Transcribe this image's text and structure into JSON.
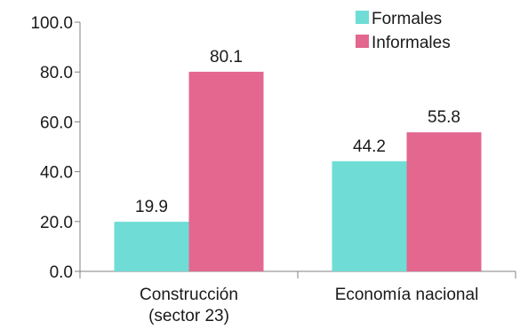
{
  "chart_data": {
    "type": "bar",
    "categories": [
      [
        "Construcción",
        "(sector 23)"
      ],
      [
        "Economía nacional"
      ]
    ],
    "series": [
      {
        "name": "Formales",
        "values": [
          19.9,
          44.2
        ],
        "color": "#6fddd5"
      },
      {
        "name": "Informales",
        "values": [
          80.1,
          55.8
        ],
        "color": "#e3678f"
      }
    ],
    "y_ticks": [
      "0.0",
      "20.0",
      "40.0",
      "60.0",
      "80.0",
      "100.0"
    ],
    "data_labels": [
      [
        "19.9",
        "44.2"
      ],
      [
        "80.1",
        "55.8"
      ]
    ],
    "ylim": [
      0,
      100
    ],
    "grid": false,
    "legend_position": "top-right"
  }
}
